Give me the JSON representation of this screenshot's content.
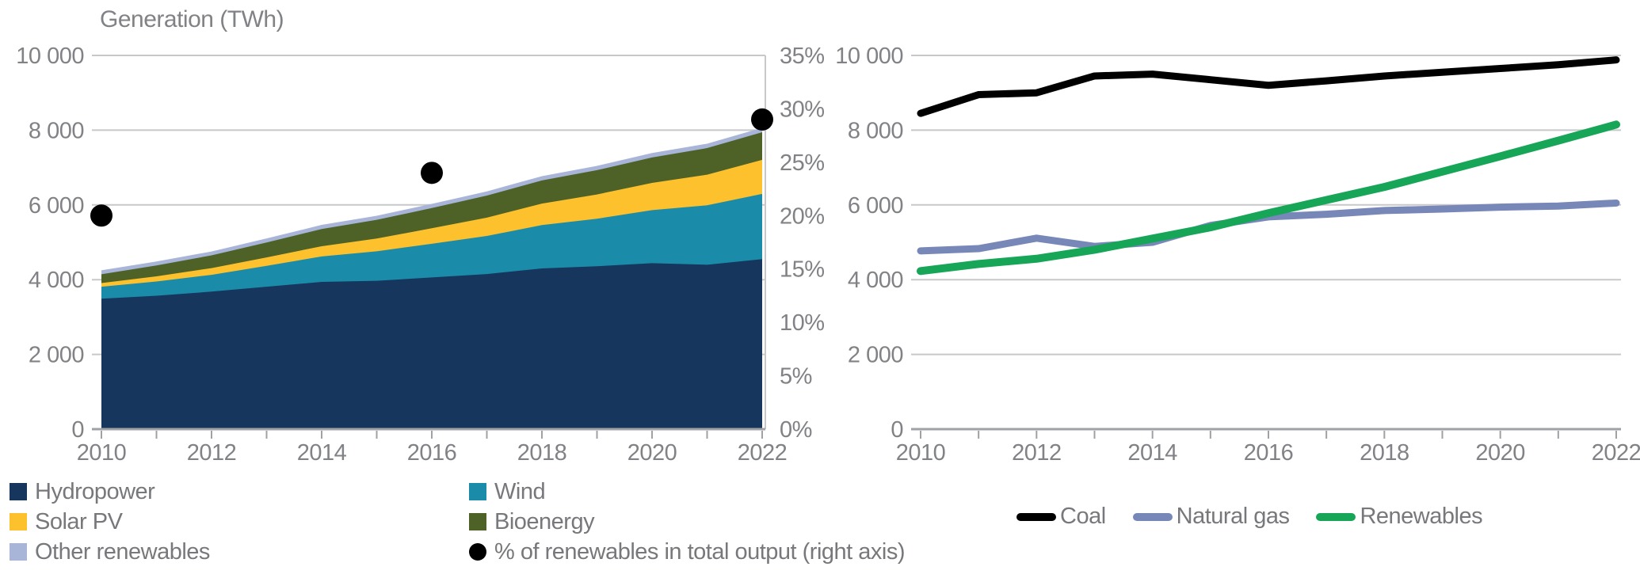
{
  "chart_data": [
    {
      "type": "area",
      "title": "Generation (TWh)",
      "stacking": "stacked",
      "legend_position": "bottom",
      "grid": "horizontal",
      "years": [
        2010,
        2011,
        2012,
        2013,
        2014,
        2015,
        2016,
        2017,
        2018,
        2019,
        2020,
        2021,
        2022
      ],
      "x_labels": [
        {
          "label": "2010",
          "year": 2010
        },
        {
          "label": "2012",
          "year": 2012
        },
        {
          "label": "2014",
          "year": 2014
        },
        {
          "label": "2016",
          "year": 2016
        },
        {
          "label": "2018",
          "year": 2018
        },
        {
          "label": "2020",
          "year": 2020
        },
        {
          "label": "2022",
          "year": 2022
        }
      ],
      "y_axis": {
        "min": 0,
        "max": 10000,
        "ticks": [
          {
            "label": "10 000",
            "value": 10000
          },
          {
            "label": "8 000",
            "value": 8000
          },
          {
            "label": "6 000",
            "value": 6000
          },
          {
            "label": "4 000",
            "value": 4000
          },
          {
            "label": "2 000",
            "value": 2000
          },
          {
            "label": "0",
            "value": 0
          }
        ]
      },
      "right_axis": {
        "min": 0,
        "max": 35,
        "ticks": [
          {
            "label": "35%",
            "value": 35
          },
          {
            "label": "30%",
            "value": 30
          },
          {
            "label": "25%",
            "value": 25
          },
          {
            "label": "20%",
            "value": 20
          },
          {
            "label": "15%",
            "value": 15
          },
          {
            "label": "10%",
            "value": 10
          },
          {
            "label": "5%",
            "value": 5
          },
          {
            "label": "0%",
            "value": 0
          }
        ]
      },
      "series": [
        {
          "name": "Hydropower",
          "color": "#17365d",
          "values": [
            3490,
            3570,
            3680,
            3810,
            3940,
            3970,
            4060,
            4150,
            4300,
            4360,
            4440,
            4400,
            4550
          ]
        },
        {
          "name": "Wind",
          "color": "#1a8caa",
          "values": [
            320,
            380,
            450,
            560,
            680,
            790,
            900,
            1020,
            1160,
            1270,
            1420,
            1590,
            1745
          ]
        },
        {
          "name": "Solar PV",
          "color": "#fdc12e",
          "values": [
            100,
            140,
            180,
            225,
            275,
            340,
            415,
            490,
            575,
            650,
            730,
            820,
            910
          ]
        },
        {
          "name": "Bioenergy",
          "color": "#4e6228",
          "values": [
            235,
            290,
            340,
            400,
            460,
            500,
            540,
            590,
            620,
            650,
            680,
            710,
            740
          ]
        },
        {
          "name": "Other renewables",
          "color": "#a9b5d8",
          "values": [
            105,
            105,
            105,
            108,
            110,
            110,
            112,
            112,
            115,
            115,
            118,
            118,
            120
          ]
        }
      ],
      "dots": {
        "name": "% of renewables in total output (right axis)",
        "color": "#000000",
        "axis": "right",
        "points": [
          {
            "year": 2010,
            "value": 20
          },
          {
            "year": 2016,
            "value": 24
          },
          {
            "year": 2022,
            "value": 29
          }
        ]
      }
    },
    {
      "type": "line",
      "title": "",
      "legend_position": "bottom",
      "grid": "horizontal",
      "years": [
        2010,
        2011,
        2012,
        2013,
        2014,
        2015,
        2016,
        2017,
        2018,
        2019,
        2020,
        2021,
        2022
      ],
      "x_labels": [
        {
          "label": "2010",
          "year": 2010
        },
        {
          "label": "2012",
          "year": 2012
        },
        {
          "label": "2014",
          "year": 2014
        },
        {
          "label": "2016",
          "year": 2016
        },
        {
          "label": "2018",
          "year": 2018
        },
        {
          "label": "2020",
          "year": 2020
        },
        {
          "label": "2022",
          "year": 2022
        }
      ],
      "y_axis": {
        "min": 0,
        "max": 10000,
        "ticks": [
          {
            "label": "10 000",
            "value": 10000
          },
          {
            "label": "8 000",
            "value": 8000
          },
          {
            "label": "6 000",
            "value": 6000
          },
          {
            "label": "4 000",
            "value": 4000
          },
          {
            "label": "2 000",
            "value": 2000
          },
          {
            "label": "0",
            "value": 0
          }
        ]
      },
      "series": [
        {
          "name": "Coal",
          "color": "#000000",
          "values": [
            8450,
            8950,
            9000,
            9450,
            9500,
            9350,
            9200,
            9320,
            9450,
            9550,
            9650,
            9750,
            9880
          ]
        },
        {
          "name": "Natural gas",
          "color": "#7787b8",
          "values": [
            4770,
            4830,
            5110,
            4890,
            5000,
            5450,
            5680,
            5750,
            5850,
            5890,
            5940,
            5970,
            6050
          ]
        },
        {
          "name": "Renewables",
          "color": "#17a657",
          "values": [
            4230,
            4420,
            4560,
            4800,
            5100,
            5400,
            5780,
            6130,
            6480,
            6890,
            7300,
            7720,
            8150
          ]
        }
      ]
    }
  ],
  "style": {
    "gridline_color": "#c7c8ca",
    "axis_color": "#9fa1a4",
    "text_color": "#808285"
  }
}
